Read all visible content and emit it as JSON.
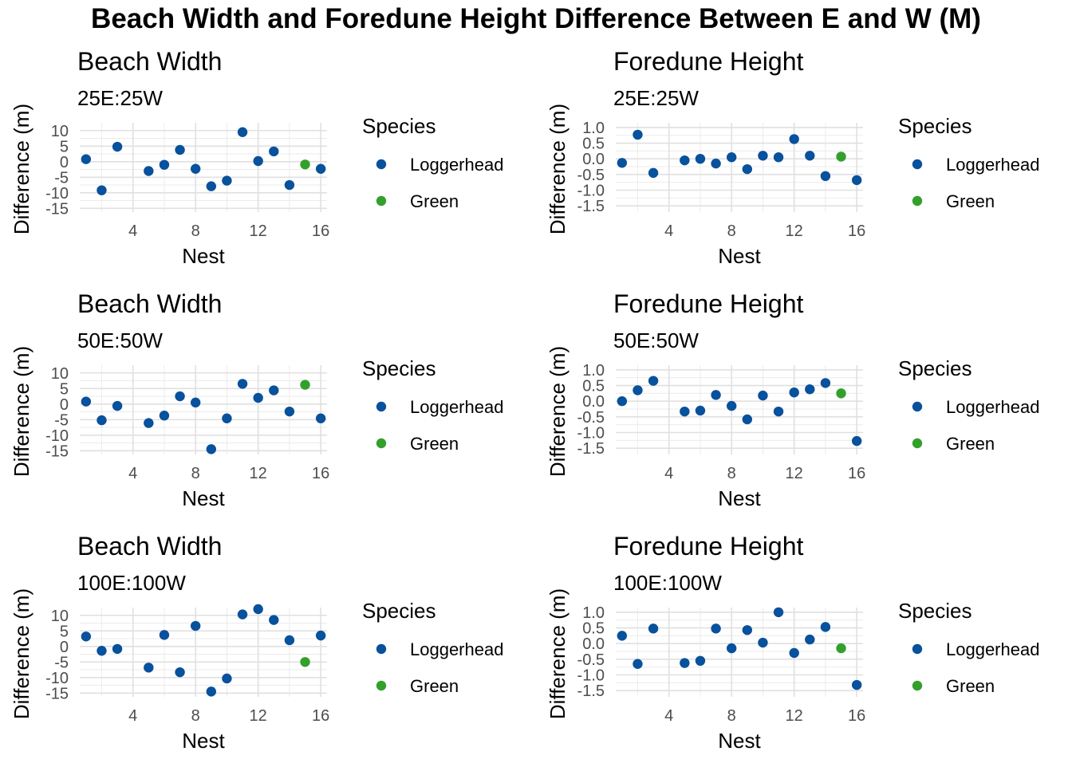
{
  "title": "Beach Width and Foredune Height Difference Between E and W (M)",
  "colors": {
    "Loggerhead": "#08519C",
    "Green": "#33A02C"
  },
  "chart_data": [
    {
      "type": "scatter",
      "title": "Beach Width",
      "subtitle": "25E:25W",
      "xlabel": "Nest",
      "ylabel": "Difference (m)",
      "xlim": [
        0.6,
        16.4
      ],
      "ylim": [
        -16.2,
        12.5
      ],
      "xticks": [
        4,
        8,
        12,
        16
      ],
      "yticks": [
        10,
        5,
        0,
        -5,
        -10,
        -15
      ],
      "legend": {
        "title": "Species",
        "entries": [
          "Loggerhead",
          "Green"
        ],
        "position": "right"
      },
      "series": [
        {
          "name": "Loggerhead",
          "x": [
            1,
            2,
            3,
            5,
            6,
            7,
            8,
            9,
            10,
            11,
            12,
            13,
            14,
            16
          ],
          "y": [
            0.8,
            -9.2,
            4.8,
            -3,
            -1,
            3.8,
            -2.3,
            -7.9,
            -6.1,
            9.5,
            0.2,
            3.3,
            -7.5,
            -2.3
          ]
        },
        {
          "name": "Green",
          "x": [
            15
          ],
          "y": [
            -0.9
          ]
        }
      ]
    },
    {
      "type": "scatter",
      "title": "Foredune Height",
      "subtitle": "25E:25W",
      "xlabel": "Nest",
      "ylabel": "Difference (m)",
      "xlim": [
        0.6,
        16.4
      ],
      "ylim": [
        -1.7,
        1.15
      ],
      "xticks": [
        4,
        8,
        12,
        16
      ],
      "yticks": [
        1.0,
        0.5,
        0.0,
        -0.5,
        -1.0,
        -1.5
      ],
      "ytick_labels": [
        "1.0",
        "0.5",
        "0.0",
        "-0.5",
        "-1.0",
        "-1.5"
      ],
      "legend": {
        "title": "Species",
        "entries": [
          "Loggerhead",
          "Green"
        ],
        "position": "right"
      },
      "series": [
        {
          "name": "Loggerhead",
          "x": [
            1,
            2,
            3,
            5,
            6,
            7,
            8,
            9,
            10,
            11,
            12,
            13,
            14,
            16
          ],
          "y": [
            -0.13,
            0.77,
            -0.45,
            -0.05,
            0.0,
            -0.15,
            0.05,
            -0.33,
            0.1,
            0.05,
            0.63,
            0.1,
            -0.55,
            -0.68
          ]
        },
        {
          "name": "Green",
          "x": [
            15
          ],
          "y": [
            0.07
          ]
        }
      ]
    },
    {
      "type": "scatter",
      "title": "Beach Width",
      "subtitle": "50E:50W",
      "xlabel": "Nest",
      "ylabel": "Difference (m)",
      "xlim": [
        0.6,
        16.4
      ],
      "ylim": [
        -16.2,
        12.5
      ],
      "xticks": [
        4,
        8,
        12,
        16
      ],
      "yticks": [
        10,
        5,
        0,
        -5,
        -10,
        -15
      ],
      "legend": {
        "title": "Species",
        "entries": [
          "Loggerhead",
          "Green"
        ],
        "position": "right"
      },
      "series": [
        {
          "name": "Loggerhead",
          "x": [
            1,
            2,
            3,
            5,
            6,
            7,
            8,
            9,
            10,
            11,
            12,
            13,
            14,
            16
          ],
          "y": [
            0.8,
            -5.2,
            -0.6,
            -6.1,
            -3.7,
            2.5,
            0.5,
            -14.5,
            -4.6,
            6.5,
            2,
            4.4,
            -2.4,
            -4.6
          ]
        },
        {
          "name": "Green",
          "x": [
            15
          ],
          "y": [
            6.2
          ]
        }
      ]
    },
    {
      "type": "scatter",
      "title": "Foredune Height",
      "subtitle": "50E:50W",
      "xlabel": "Nest",
      "ylabel": "Difference (m)",
      "xlim": [
        0.6,
        16.4
      ],
      "ylim": [
        -1.7,
        1.15
      ],
      "xticks": [
        4,
        8,
        12,
        16
      ],
      "yticks": [
        1.0,
        0.5,
        0.0,
        -0.5,
        -1.0,
        -1.5
      ],
      "ytick_labels": [
        "1.0",
        "0.5",
        "0.0",
        "-0.5",
        "-1.0",
        "-1.5"
      ],
      "legend": {
        "title": "Species",
        "entries": [
          "Loggerhead",
          "Green"
        ],
        "position": "right"
      },
      "series": [
        {
          "name": "Loggerhead",
          "x": [
            1,
            2,
            3,
            5,
            6,
            7,
            8,
            9,
            10,
            11,
            12,
            13,
            14,
            16
          ],
          "y": [
            0.0,
            0.35,
            0.65,
            -0.33,
            -0.3,
            0.2,
            -0.15,
            -0.58,
            0.18,
            -0.33,
            0.28,
            0.38,
            0.58,
            -1.27
          ]
        },
        {
          "name": "Green",
          "x": [
            15
          ],
          "y": [
            0.25
          ]
        }
      ]
    },
    {
      "type": "scatter",
      "title": "Beach Width",
      "subtitle": "100E:100W",
      "xlabel": "Nest",
      "ylabel": "Difference (m)",
      "xlim": [
        0.6,
        16.4
      ],
      "ylim": [
        -16.2,
        12.5
      ],
      "xticks": [
        4,
        8,
        12,
        16
      ],
      "yticks": [
        10,
        5,
        0,
        -5,
        -10,
        -15
      ],
      "legend": {
        "title": "Species",
        "entries": [
          "Loggerhead",
          "Green"
        ],
        "position": "right"
      },
      "series": [
        {
          "name": "Loggerhead",
          "x": [
            1,
            2,
            3,
            5,
            6,
            7,
            8,
            9,
            10,
            11,
            12,
            13,
            14,
            16
          ],
          "y": [
            3.2,
            -1.4,
            -0.8,
            -6.8,
            3.7,
            -8.3,
            6.6,
            -14.5,
            -10.3,
            10.3,
            12,
            8.5,
            2,
            3.5
          ]
        },
        {
          "name": "Green",
          "x": [
            15
          ],
          "y": [
            -5
          ]
        }
      ]
    },
    {
      "type": "scatter",
      "title": "Foredune Height",
      "subtitle": "100E:100W",
      "xlabel": "Nest",
      "ylabel": "Difference (m)",
      "xlim": [
        0.6,
        16.4
      ],
      "ylim": [
        -1.7,
        1.15
      ],
      "xticks": [
        4,
        8,
        12,
        16
      ],
      "yticks": [
        1.0,
        0.5,
        0.0,
        -0.5,
        -1.0,
        -1.5
      ],
      "ytick_labels": [
        "1.0",
        "0.5",
        "0.0",
        "-0.5",
        "-1.0",
        "-1.5"
      ],
      "legend": {
        "title": "Species",
        "entries": [
          "Loggerhead",
          "Green"
        ],
        "position": "right"
      },
      "series": [
        {
          "name": "Loggerhead",
          "x": [
            1,
            2,
            3,
            5,
            6,
            7,
            8,
            9,
            10,
            11,
            12,
            13,
            14,
            16
          ],
          "y": [
            0.25,
            -0.65,
            0.48,
            -0.62,
            -0.55,
            0.48,
            -0.15,
            0.43,
            0.03,
            1.0,
            -0.3,
            0.13,
            0.53,
            -1.32
          ]
        },
        {
          "name": "Green",
          "x": [
            15
          ],
          "y": [
            -0.15
          ]
        }
      ]
    }
  ]
}
